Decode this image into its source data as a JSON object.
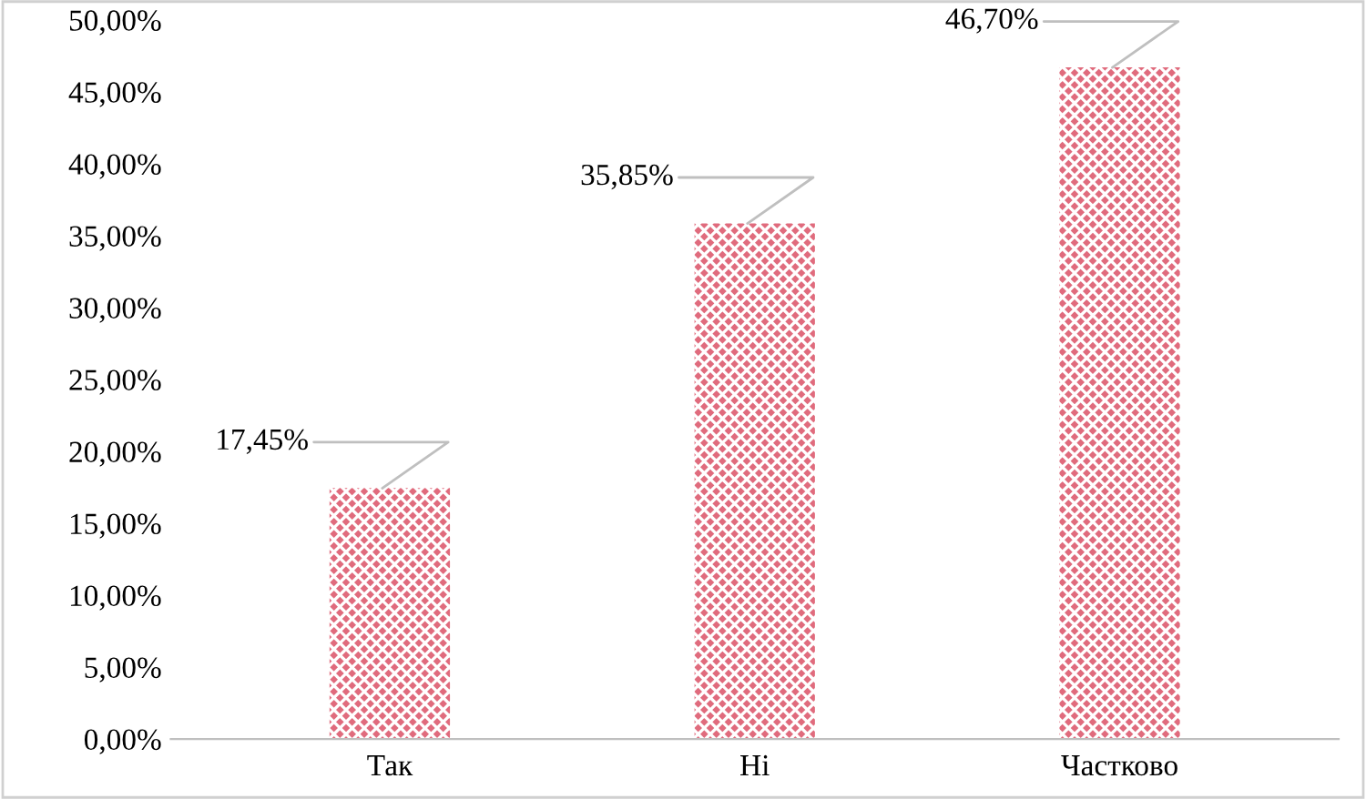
{
  "chart_data": {
    "type": "bar",
    "categories": [
      "Так",
      "Ні",
      "Частково"
    ],
    "values": [
      17.45,
      35.85,
      46.7
    ],
    "color": "#e06b7d",
    "value_labels": [
      "17,45%",
      "35,85%",
      "46,70%"
    ],
    "ylim": [
      0,
      50
    ],
    "yticks": [
      {
        "value": 0,
        "label": "0,00%"
      },
      {
        "value": 5,
        "label": "5,00%"
      },
      {
        "value": 10,
        "label": "10,00%"
      },
      {
        "value": 15,
        "label": "15,00%"
      },
      {
        "value": 20,
        "label": "20,00%"
      },
      {
        "value": 25,
        "label": "25,00%"
      },
      {
        "value": 30,
        "label": "30,00%"
      },
      {
        "value": 35,
        "label": "35,00%"
      },
      {
        "value": 40,
        "label": "40,00%"
      },
      {
        "value": 45,
        "label": "45,00%"
      },
      {
        "value": 50,
        "label": "50,00%"
      }
    ],
    "grid": false,
    "legend": false
  }
}
